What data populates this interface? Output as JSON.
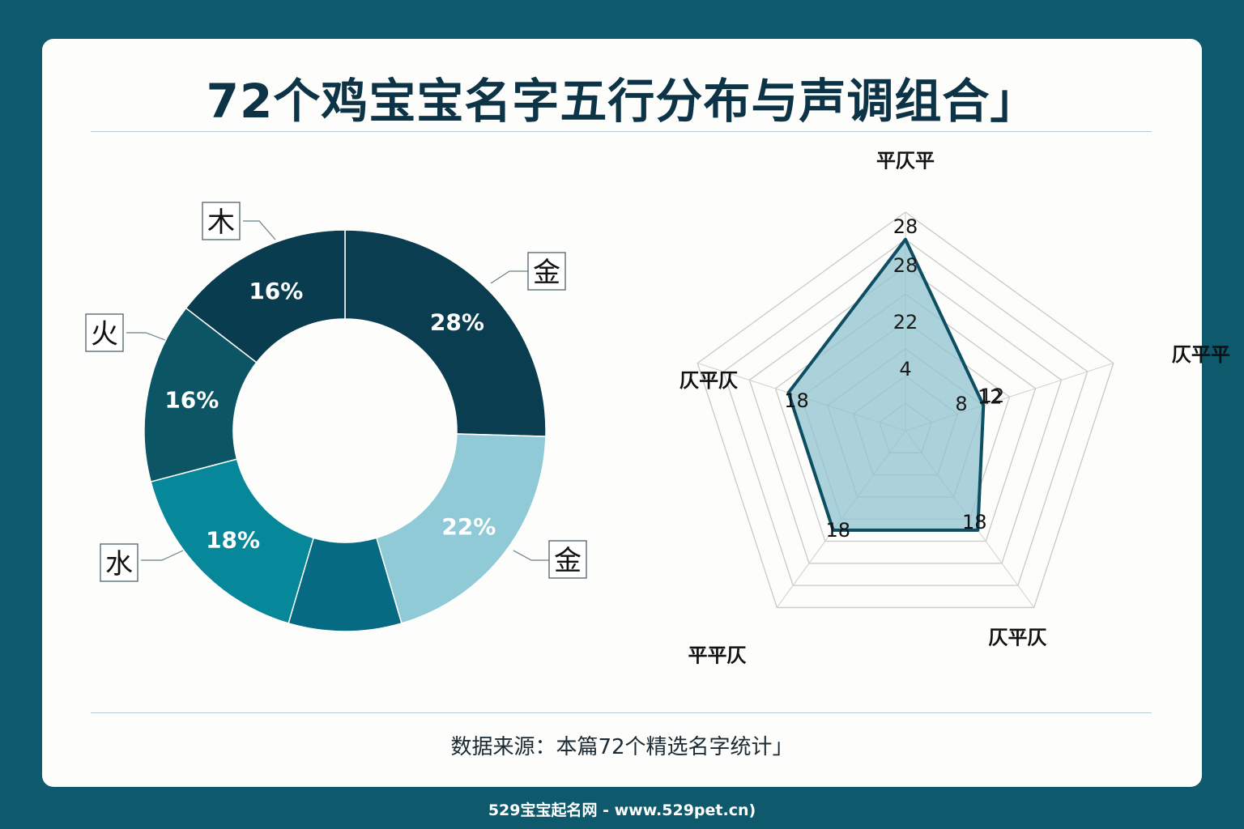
{
  "title": "72个鸡宝宝名字五行分布与声调组合」",
  "source": "数据来源：本篇72个精选名字统计」",
  "footer": "529宝宝起名网 - www.529pet.cn)",
  "chart_data": [
    {
      "type": "pie",
      "slices": [
        {
          "label": "金",
          "value": 28,
          "text": "28%",
          "color": "#0b3d50"
        },
        {
          "label": "金",
          "value": 22,
          "text": "22%",
          "color": "#8fcad6"
        },
        {
          "label": "",
          "value": 10,
          "text": "",
          "color": "#056a82"
        },
        {
          "label": "水",
          "value": 18,
          "text": "18%",
          "color": "#07889a"
        },
        {
          "label": "火",
          "value": 16,
          "text": "16%",
          "color": "#0b5565"
        },
        {
          "label": "木",
          "value": 16,
          "text": "16%",
          "color": "#0a3c4f"
        }
      ]
    },
    {
      "type": "radar",
      "axes": [
        "平仄平",
        "仄平平",
        "仄平仄",
        "平平仄",
        "仄平仄"
      ],
      "values": [
        28,
        12,
        18,
        18,
        18
      ],
      "tick_labels": [
        "4",
        "8",
        "12",
        "22",
        "28"
      ],
      "max": 32,
      "line_color": "#0d4e62",
      "fill_color": "#8fc3cf"
    }
  ]
}
